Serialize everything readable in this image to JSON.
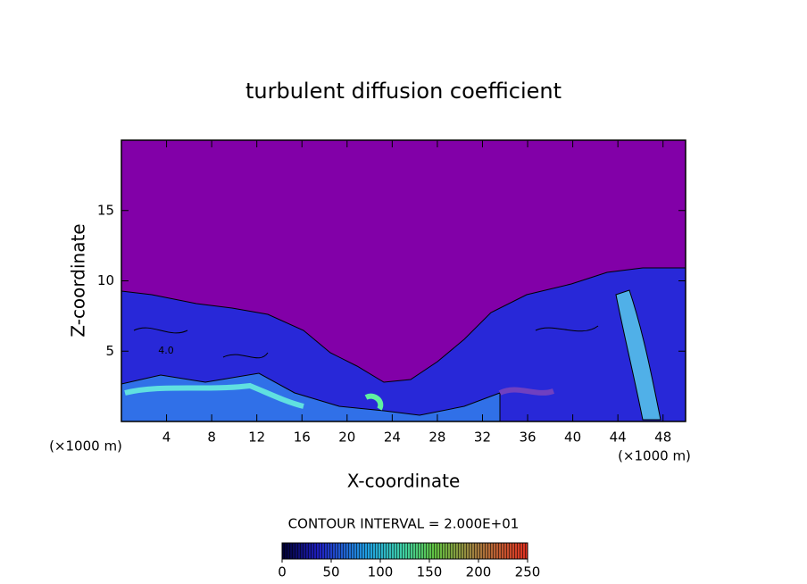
{
  "chart_data": {
    "type": "contour",
    "title": "turbulent diffusion coefficient",
    "x_label": "X-coordinate",
    "y_label": "Z-coordinate",
    "x_unit": "(×1000 m)",
    "y_unit": "(×1000 m)",
    "xlim": [
      0,
      50
    ],
    "xticks": [
      4,
      8,
      12,
      16,
      20,
      24,
      28,
      32,
      36,
      40,
      44,
      48
    ],
    "ylim": [
      0,
      20
    ],
    "yticks": [
      5,
      10,
      15
    ],
    "annotations": [
      "4.0"
    ],
    "contour_interval_label": "CONTOUR INTERVAL = 2.000E+01",
    "colorbar": {
      "lim": [
        0,
        250
      ],
      "ticks": [
        0,
        50,
        100,
        150,
        200,
        250
      ]
    }
  }
}
